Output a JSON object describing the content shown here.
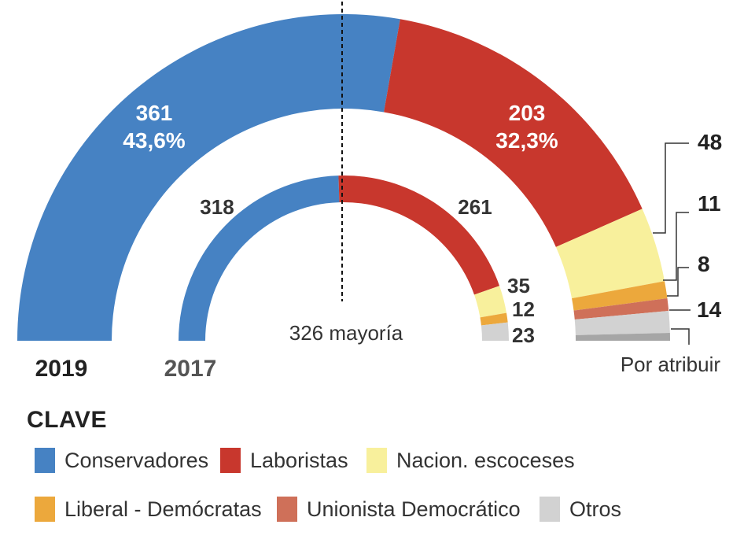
{
  "chart_data": {
    "type": "parliament-semicircle",
    "majority_label": "326 mayoría",
    "rings": [
      {
        "year": "2019",
        "segments": [
          {
            "party": "Conservadores",
            "seats": 361,
            "label": "361",
            "pct_label": "43,6%",
            "color": "#4682c3"
          },
          {
            "party": "Laboristas",
            "seats": 203,
            "label": "203",
            "pct_label": "32,3%",
            "color": "#c8372d"
          },
          {
            "party": "Nacion. escoceses",
            "seats": 48,
            "label": "48",
            "color": "#f8f09c"
          },
          {
            "party": "Liberal - Demócratas",
            "seats": 11,
            "label": "11",
            "color": "#eca83c"
          },
          {
            "party": "Unionista Democrático",
            "seats": 8,
            "label": "8",
            "color": "#cf7059"
          },
          {
            "party": "Otros",
            "seats": 14,
            "label": "14",
            "color": "#d2d2d2"
          },
          {
            "party": "Por atribuir",
            "seats": 5,
            "label": "Por atribuir",
            "color": "#a6a6a6"
          }
        ]
      },
      {
        "year": "2017",
        "segments": [
          {
            "party": "Conservadores",
            "seats": 318,
            "label": "318",
            "color": "#4682c3"
          },
          {
            "party": "Laboristas",
            "seats": 261,
            "label": "261",
            "color": "#c8372d"
          },
          {
            "party": "Nacion. escoceses",
            "seats": 35,
            "label": "35",
            "color": "#f8f09c"
          },
          {
            "party": "Liberal - Demócratas",
            "seats": 12,
            "label": "12",
            "color": "#eca83c"
          },
          {
            "party": "Otros",
            "seats": 23,
            "label": "23",
            "color": "#d2d2d2"
          }
        ]
      }
    ]
  },
  "legend": {
    "title": "CLAVE",
    "items": [
      {
        "label": "Conservadores",
        "color": "#4682c3"
      },
      {
        "label": "Laboristas",
        "color": "#c8372d"
      },
      {
        "label": "Nacion. escoceses",
        "color": "#f8f09c"
      },
      {
        "label": "Liberal - Demócratas",
        "color": "#eca83c"
      },
      {
        "label": "Unionista Democrático",
        "color": "#cf7059"
      },
      {
        "label": "Otros",
        "color": "#d2d2d2"
      }
    ]
  }
}
